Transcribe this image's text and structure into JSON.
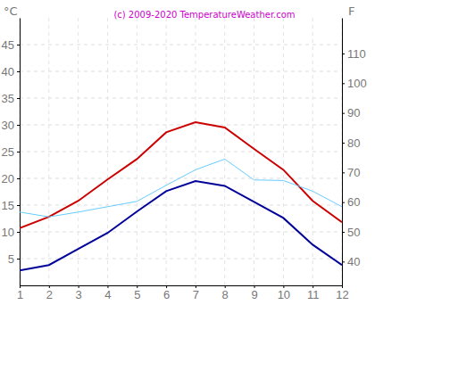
{
  "chart_data": {
    "type": "line",
    "title": "(c) 2009-2020 TemperatureWeather.com",
    "ylabel": "°C",
    "y2label": "F",
    "x": [
      1,
      2,
      3,
      4,
      5,
      6,
      7,
      8,
      9,
      10,
      11,
      12
    ],
    "xlim": [
      1,
      12
    ],
    "xticks": [
      1,
      2,
      3,
      4,
      5,
      6,
      7,
      8,
      9,
      10,
      11,
      12
    ],
    "ylim": [
      0,
      50
    ],
    "yticks": [
      5,
      10,
      15,
      20,
      25,
      30,
      35,
      40,
      45
    ],
    "y2lim": [
      32,
      122
    ],
    "y2ticks": [
      40,
      50,
      60,
      70,
      80,
      90,
      100,
      110
    ],
    "grid": true,
    "series": [
      {
        "color": "#cc0000",
        "values": [
          10.7,
          12.8,
          15.8,
          19.8,
          23.6,
          28.6,
          30.5,
          29.5,
          25.5,
          21.6,
          15.8,
          11.8
        ]
      },
      {
        "color": "#000099",
        "values": [
          2.8,
          3.8,
          6.8,
          9.8,
          13.8,
          17.6,
          19.5,
          18.6,
          15.6,
          12.6,
          7.6,
          3.8
        ]
      },
      {
        "color": "#66ccff",
        "values": [
          13.7,
          12.8,
          13.7,
          14.7,
          15.7,
          18.7,
          21.6,
          23.6,
          19.7,
          19.6,
          17.6,
          14.7
        ]
      }
    ]
  }
}
